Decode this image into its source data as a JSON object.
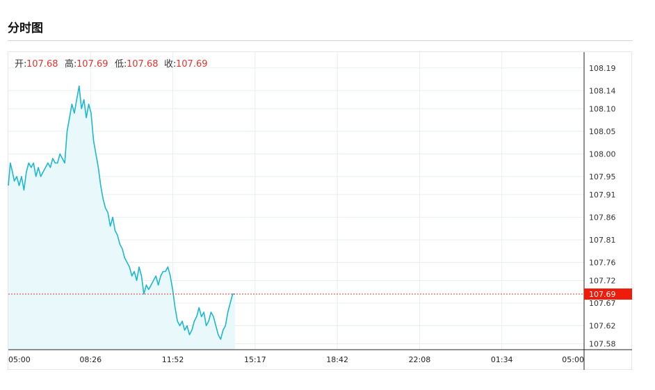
{
  "page": {
    "title": "分时图"
  },
  "colors": {
    "line": "#1ab8d3",
    "fill": "#e9f8fa",
    "grid": "#e8eef0",
    "last_price_bg": "#ee1c0b",
    "last_price_line": "#e5322d",
    "ohlc_value": "#e5322d"
  },
  "chart_data": {
    "type": "line",
    "title": "",
    "xlabel": "",
    "ylabel": "",
    "ohlc": {
      "open_label": "开:",
      "open": "107.68",
      "high_label": "高:",
      "high": "107.69",
      "low_label": "低:",
      "low": "107.68",
      "close_label": "收:",
      "close": "107.69"
    },
    "last_price": 107.69,
    "last_price_label": "107.69",
    "ylim": [
      107.567,
      108.225
    ],
    "y_ticks": [
      "108.19",
      "108.14",
      "108.10",
      "108.05",
      "108.00",
      "107.95",
      "107.91",
      "107.86",
      "107.81",
      "107.76",
      "107.72",
      "107.67",
      "107.62",
      "107.58"
    ],
    "x_ticks": [
      "05:00",
      "08:26",
      "11:52",
      "15:17",
      "18:42",
      "22:08",
      "01:34",
      "05:00"
    ],
    "x_unit": "hours since 05:00",
    "x_range": [
      0,
      24
    ],
    "grid": true,
    "series": [
      {
        "x": [
          0.0,
          0.08,
          0.17,
          0.25,
          0.35,
          0.45,
          0.55,
          0.65,
          0.75,
          0.85,
          0.95,
          1.05,
          1.15,
          1.25,
          1.35,
          1.45,
          1.55,
          1.65,
          1.75,
          1.85,
          1.95,
          2.05,
          2.15,
          2.25,
          2.35,
          2.45,
          2.55,
          2.65,
          2.75,
          2.85,
          2.95,
          3.05,
          3.15,
          3.25,
          3.35,
          3.45,
          3.55,
          3.65,
          3.75,
          3.85,
          3.95,
          4.05,
          4.15,
          4.25,
          4.35,
          4.45,
          4.55,
          4.65,
          4.75,
          4.85,
          4.95,
          5.05,
          5.15,
          5.25,
          5.35,
          5.45,
          5.55,
          5.65,
          5.75,
          5.85,
          5.95,
          6.05,
          6.15,
          6.25,
          6.35,
          6.45,
          6.55,
          6.65,
          6.75,
          6.85,
          6.95,
          7.05,
          7.15,
          7.25,
          7.35,
          7.45,
          7.55,
          7.65,
          7.75,
          7.85,
          7.95,
          8.05,
          8.15,
          8.25,
          8.35,
          8.45,
          8.55,
          8.65,
          8.75,
          8.85,
          8.95,
          9.05,
          9.15,
          9.25,
          9.35,
          9.45
        ],
        "values": [
          107.93,
          107.98,
          107.96,
          107.94,
          107.95,
          107.93,
          107.95,
          107.92,
          107.96,
          107.98,
          107.97,
          107.98,
          107.95,
          107.97,
          107.95,
          107.96,
          107.97,
          107.98,
          107.97,
          107.99,
          107.98,
          107.98,
          108.0,
          107.99,
          107.98,
          108.05,
          108.08,
          108.11,
          108.09,
          108.12,
          108.15,
          108.1,
          108.12,
          108.08,
          108.11,
          108.09,
          108.03,
          108.0,
          107.97,
          107.93,
          107.9,
          107.88,
          107.87,
          107.84,
          107.86,
          107.83,
          107.82,
          107.8,
          107.79,
          107.77,
          107.76,
          107.75,
          107.73,
          107.74,
          107.72,
          107.75,
          107.73,
          107.69,
          107.71,
          107.7,
          107.71,
          107.72,
          107.73,
          107.71,
          107.73,
          107.74,
          107.74,
          107.75,
          107.73,
          107.7,
          107.66,
          107.63,
          107.62,
          107.63,
          107.61,
          107.62,
          107.6,
          107.61,
          107.63,
          107.64,
          107.66,
          107.64,
          107.65,
          107.62,
          107.63,
          107.65,
          107.64,
          107.62,
          107.6,
          107.59,
          107.61,
          107.62,
          107.65,
          107.67,
          107.69,
          107.69
        ]
      }
    ]
  }
}
